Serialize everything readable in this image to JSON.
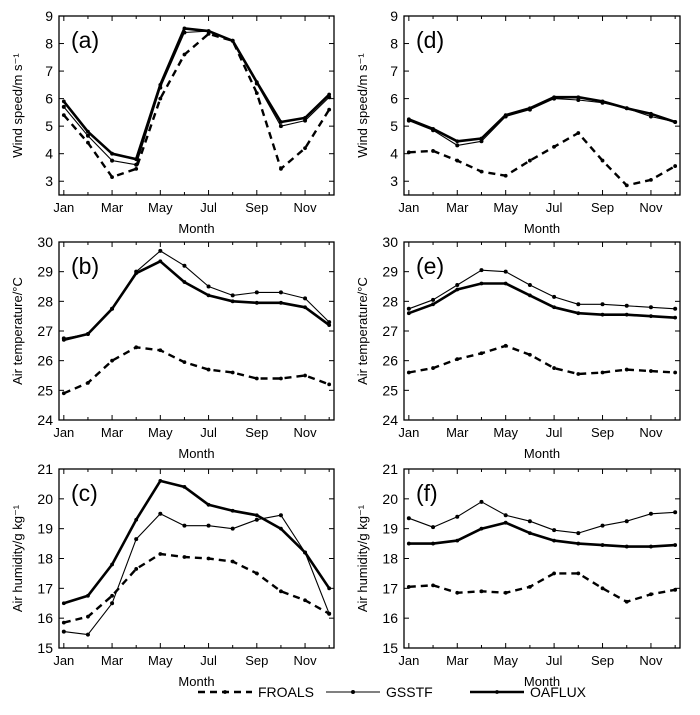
{
  "x_title": "Month",
  "month_ticks": [
    "Jan",
    "Mar",
    "May",
    "Jul",
    "Sep",
    "Nov"
  ],
  "legend": [
    "FROALS",
    "GSSTF",
    "OAFLUX"
  ],
  "chart_data": [
    {
      "panel": "(a)",
      "type": "line",
      "ylabel": "Wind speed/m s⁻¹",
      "xlabel": "Month",
      "x": [
        1,
        2,
        3,
        4,
        5,
        6,
        7,
        8,
        9,
        10,
        11,
        12
      ],
      "ylim": [
        2.5,
        9
      ],
      "yticks": [
        3,
        4,
        5,
        6,
        7,
        8,
        9
      ],
      "series": [
        {
          "name": "FROALS",
          "values": [
            5.4,
            4.4,
            3.15,
            3.45,
            6.0,
            7.6,
            8.35,
            8.1,
            6.2,
            3.45,
            4.2,
            5.6
          ]
        },
        {
          "name": "GSSTF",
          "values": [
            5.7,
            4.65,
            3.75,
            3.6,
            6.4,
            8.4,
            8.45,
            8.1,
            6.55,
            5.0,
            5.2,
            6.05
          ]
        },
        {
          "name": "OAFLUX",
          "values": [
            5.9,
            4.8,
            4.0,
            3.8,
            6.5,
            8.55,
            8.45,
            8.1,
            6.6,
            5.15,
            5.3,
            6.15
          ]
        }
      ]
    },
    {
      "panel": "(d)",
      "type": "line",
      "ylabel": "Wind speed/m s⁻¹",
      "xlabel": "Month",
      "x": [
        1,
        2,
        3,
        4,
        5,
        6,
        7,
        8,
        9,
        10,
        11,
        12
      ],
      "ylim": [
        2.5,
        9
      ],
      "yticks": [
        3,
        4,
        5,
        6,
        7,
        8,
        9
      ],
      "series": [
        {
          "name": "FROALS",
          "values": [
            4.05,
            4.1,
            3.75,
            3.35,
            3.2,
            3.75,
            4.25,
            4.75,
            3.75,
            2.85,
            3.05,
            3.55
          ]
        },
        {
          "name": "GSSTF",
          "values": [
            5.2,
            4.85,
            4.3,
            4.45,
            5.35,
            5.6,
            6.0,
            5.95,
            5.85,
            5.65,
            5.35,
            5.15
          ]
        },
        {
          "name": "OAFLUX",
          "values": [
            5.25,
            4.9,
            4.45,
            4.55,
            5.4,
            5.65,
            6.05,
            6.05,
            5.9,
            5.65,
            5.45,
            5.15
          ]
        }
      ]
    },
    {
      "panel": "(b)",
      "type": "line",
      "ylabel": "Air temperature/°C",
      "xlabel": "Month",
      "x": [
        1,
        2,
        3,
        4,
        5,
        6,
        7,
        8,
        9,
        10,
        11,
        12
      ],
      "ylim": [
        24,
        30
      ],
      "yticks": [
        24,
        25,
        26,
        27,
        28,
        29,
        30
      ],
      "series": [
        {
          "name": "FROALS",
          "values": [
            24.9,
            25.25,
            26.0,
            26.45,
            26.35,
            25.95,
            25.7,
            25.6,
            25.4,
            25.4,
            25.5,
            25.2
          ]
        },
        {
          "name": "GSSTF",
          "values": [
            26.75,
            26.9,
            27.75,
            29.0,
            29.7,
            29.2,
            28.5,
            28.2,
            28.3,
            28.3,
            28.1,
            27.3
          ]
        },
        {
          "name": "OAFLUX",
          "values": [
            26.7,
            26.9,
            27.75,
            28.95,
            29.35,
            28.65,
            28.2,
            28.0,
            27.95,
            27.95,
            27.8,
            27.2
          ]
        }
      ]
    },
    {
      "panel": "(e)",
      "type": "line",
      "ylabel": "Air temperature/°C",
      "xlabel": "Month",
      "x": [
        1,
        2,
        3,
        4,
        5,
        6,
        7,
        8,
        9,
        10,
        11,
        12
      ],
      "ylim": [
        24,
        30
      ],
      "yticks": [
        24,
        25,
        26,
        27,
        28,
        29,
        30
      ],
      "series": [
        {
          "name": "FROALS",
          "values": [
            25.6,
            25.75,
            26.05,
            26.25,
            26.5,
            26.2,
            25.75,
            25.55,
            25.6,
            25.7,
            25.65,
            25.6
          ]
        },
        {
          "name": "GSSTF",
          "values": [
            27.75,
            28.05,
            28.55,
            29.05,
            29.0,
            28.55,
            28.15,
            27.9,
            27.9,
            27.85,
            27.8,
            27.75
          ]
        },
        {
          "name": "OAFLUX",
          "values": [
            27.6,
            27.9,
            28.4,
            28.6,
            28.6,
            28.2,
            27.8,
            27.6,
            27.55,
            27.55,
            27.5,
            27.45
          ]
        }
      ]
    },
    {
      "panel": "(c)",
      "type": "line",
      "ylabel": "Air humidity/g kg⁻¹",
      "xlabel": "Month",
      "x": [
        1,
        2,
        3,
        4,
        5,
        6,
        7,
        8,
        9,
        10,
        11,
        12
      ],
      "ylim": [
        15,
        21
      ],
      "yticks": [
        15,
        16,
        17,
        18,
        19,
        20,
        21
      ],
      "series": [
        {
          "name": "FROALS",
          "values": [
            15.85,
            16.05,
            16.75,
            17.65,
            18.15,
            18.05,
            18.0,
            17.9,
            17.5,
            16.9,
            16.6,
            16.15
          ]
        },
        {
          "name": "GSSTF",
          "values": [
            15.55,
            15.45,
            16.5,
            18.65,
            19.5,
            19.1,
            19.1,
            19.0,
            19.3,
            19.45,
            18.2,
            16.15
          ]
        },
        {
          "name": "OAFLUX",
          "values": [
            16.5,
            16.75,
            17.8,
            19.3,
            20.6,
            20.4,
            19.8,
            19.6,
            19.45,
            19.0,
            18.2,
            17.0
          ]
        }
      ]
    },
    {
      "panel": "(f)",
      "type": "line",
      "ylabel": "Air humidity/g kg⁻¹",
      "xlabel": "Month",
      "x": [
        1,
        2,
        3,
        4,
        5,
        6,
        7,
        8,
        9,
        10,
        11,
        12
      ],
      "ylim": [
        15,
        21
      ],
      "yticks": [
        15,
        16,
        17,
        18,
        19,
        20,
        21
      ],
      "series": [
        {
          "name": "FROALS",
          "values": [
            17.05,
            17.1,
            16.85,
            16.9,
            16.85,
            17.05,
            17.5,
            17.5,
            17.0,
            16.55,
            16.8,
            16.95
          ]
        },
        {
          "name": "GSSTF",
          "values": [
            19.35,
            19.05,
            19.4,
            19.9,
            19.45,
            19.25,
            18.95,
            18.85,
            19.1,
            19.25,
            19.5,
            19.55
          ]
        },
        {
          "name": "OAFLUX",
          "values": [
            18.5,
            18.5,
            18.6,
            19.0,
            19.2,
            18.85,
            18.6,
            18.5,
            18.45,
            18.4,
            18.4,
            18.45
          ]
        }
      ]
    }
  ]
}
